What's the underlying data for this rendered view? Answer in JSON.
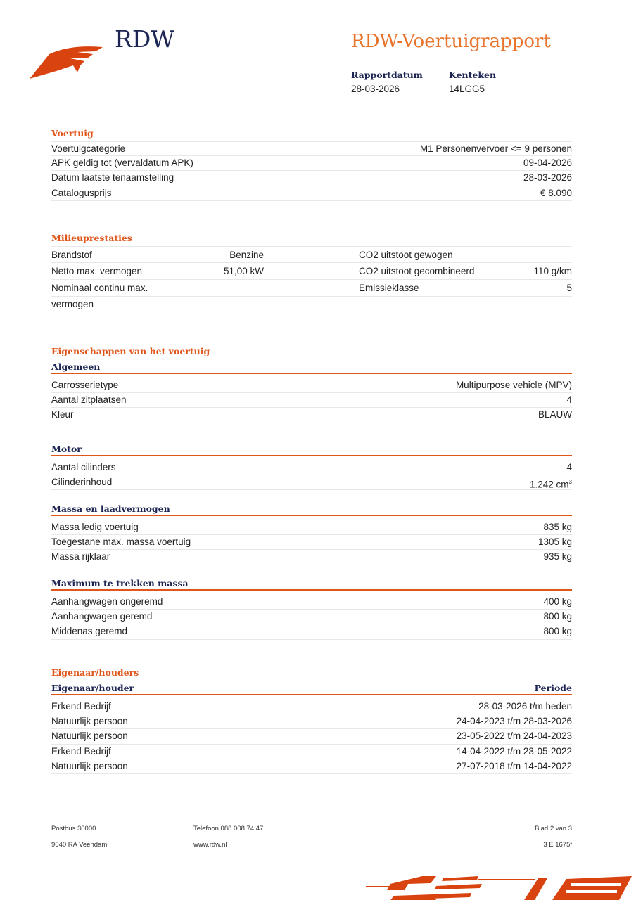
{
  "header": {
    "logo_text": "RDW",
    "title": "RDW-Voertuigrapport",
    "report_date_label": "Rapportdatum",
    "report_date": "28-03-2026",
    "plate_label": "Kenteken",
    "plate": "14LGG5"
  },
  "voertuig": {
    "heading": "Voertuig",
    "rows": [
      {
        "label": "Voertuigcategorie",
        "value": "M1 Personenvervoer <= 9 personen"
      },
      {
        "label": "APK geldig tot (vervaldatum APK)",
        "value": "09-04-2026"
      },
      {
        "label": "Datum laatste tenaamstelling",
        "value": "28-03-2026"
      },
      {
        "label": "Catalogusprijs",
        "value": "€ 8.090"
      }
    ]
  },
  "milieu": {
    "heading": "Milieuprestaties",
    "rows": [
      {
        "l1": "Brandstof",
        "v1": "Benzine",
        "l2": "CO2 uitstoot gewogen",
        "v2": ""
      },
      {
        "l1": "Netto max. vermogen",
        "v1": "51,00 kW",
        "l2": "CO2 uitstoot gecombineerd",
        "v2": "110 g/km"
      },
      {
        "l1": "Nominaal continu max. vermogen",
        "v1": "",
        "l2": "Emissieklasse",
        "v2": "5"
      }
    ]
  },
  "eigenschappen": {
    "heading": "Eigenschappen van het voertuig",
    "algemeen": {
      "heading": "Algemeen",
      "rows": [
        {
          "label": "Carrosserietype",
          "value": "Multipurpose vehicle (MPV)"
        },
        {
          "label": "Aantal zitplaatsen",
          "value": "4"
        },
        {
          "label": "Kleur",
          "value": "BLAUW"
        }
      ]
    },
    "motor": {
      "heading": "Motor",
      "rows": [
        {
          "label": "Aantal cilinders",
          "value": "4"
        },
        {
          "label": "Cilinderinhoud",
          "value": "1.242 cm",
          "sup": "3"
        }
      ]
    },
    "massa": {
      "heading": "Massa en laadvermogen",
      "rows": [
        {
          "label": "Massa ledig voertuig",
          "value": "835 kg"
        },
        {
          "label": "Toegestane max. massa voertuig",
          "value": "1305 kg"
        },
        {
          "label": "Massa rijklaar",
          "value": "935 kg"
        }
      ]
    },
    "trekken": {
      "heading": "Maximum te trekken massa",
      "rows": [
        {
          "label": "Aanhangwagen ongeremd",
          "value": "400 kg"
        },
        {
          "label": "Aanhangwagen geremd",
          "value": "800 kg"
        },
        {
          "label": "Middenas geremd",
          "value": "800 kg"
        }
      ]
    }
  },
  "eigenaar": {
    "heading": "Eigenaar/houders",
    "col1": "Eigenaar/houder",
    "col2": "Periode",
    "rows": [
      {
        "label": "Erkend Bedrijf",
        "value": "28-03-2026 t/m heden"
      },
      {
        "label": "Natuurlijk persoon",
        "value": "24-04-2023 t/m 28-03-2026"
      },
      {
        "label": "Natuurlijk persoon",
        "value": "23-05-2022 t/m 24-04-2023"
      },
      {
        "label": "Erkend Bedrijf",
        "value": "14-04-2022 t/m 23-05-2022"
      },
      {
        "label": "Natuurlijk persoon",
        "value": "27-07-2018 t/m 14-04-2022"
      }
    ]
  },
  "footer": {
    "address1": "Postbus 30000",
    "address2": "9640 RA Veendam",
    "phone": "Telefoon 088 008 74 47",
    "web": "www.rdw.nl",
    "page": "Blad 2 van 3",
    "code": "3 E 1675f"
  },
  "colors": {
    "accent": "#e0561a",
    "navy": "#1c2553"
  }
}
